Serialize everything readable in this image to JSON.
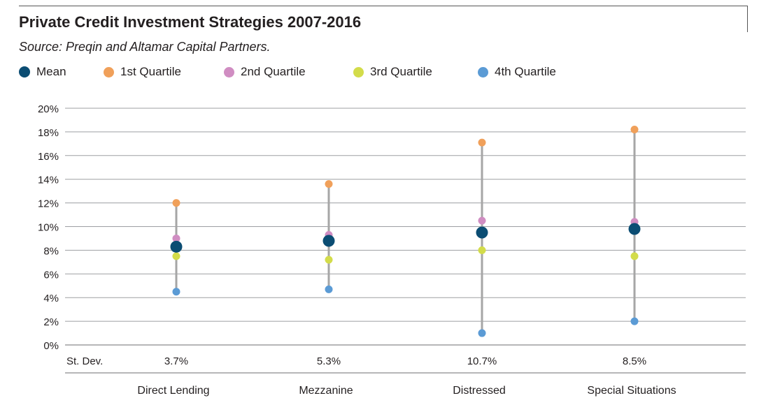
{
  "title": "Private Credit Investment Strategies 2007-2016",
  "subtitle": "Source: Preqin and Altamar Capital Partners.",
  "legend": [
    {
      "label": "Mean",
      "color": "#0b4d73"
    },
    {
      "label": "1st Quartile",
      "color": "#f0a05a"
    },
    {
      "label": "2nd Quartile",
      "color": "#d08dc2"
    },
    {
      "label": "3rd Quartile",
      "color": "#d3dc4a"
    },
    {
      "label": "4th Quartile",
      "color": "#5b9bd5"
    }
  ],
  "chart_data": {
    "type": "scatter",
    "title": "Private Credit Investment Strategies 2007-2016",
    "subtitle": "Source: Preqin and Altamar Capital Partners.",
    "categories": [
      "Direct Lending",
      "Mezzanine",
      "Distressed",
      "Special Situations"
    ],
    "ylim": [
      0,
      20
    ],
    "yticks": [
      "0%",
      "2%",
      "4%",
      "6%",
      "8%",
      "10%",
      "12%",
      "14%",
      "16%",
      "18%",
      "20%"
    ],
    "grid": true,
    "legend_position": "top-left",
    "range_line_color": "#a6a6a6",
    "series": [
      {
        "name": "Mean",
        "color": "#0b4d73",
        "values": [
          8.3,
          8.8,
          9.5,
          9.8
        ]
      },
      {
        "name": "1st Quartile",
        "color": "#f0a05a",
        "values": [
          12.0,
          13.6,
          17.1,
          18.2
        ]
      },
      {
        "name": "2nd Quartile",
        "color": "#d08dc2",
        "values": [
          9.0,
          9.3,
          10.5,
          10.4
        ]
      },
      {
        "name": "3rd Quartile",
        "color": "#d3dc4a",
        "values": [
          7.5,
          7.2,
          8.0,
          7.5
        ]
      },
      {
        "name": "4th Quartile",
        "color": "#5b9bd5",
        "values": [
          4.5,
          4.7,
          1.0,
          2.0
        ]
      }
    ],
    "stdev_label": "St. Dev.",
    "stdev_values": [
      "3.7%",
      "5.3%",
      "10.7%",
      "8.5%"
    ]
  }
}
